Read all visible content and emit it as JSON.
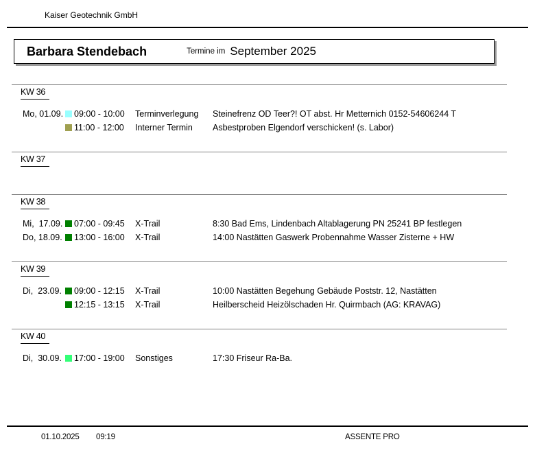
{
  "header": {
    "company": "Kaiser Geotechnik GmbH",
    "person": "Barbara Stendebach",
    "subtitle_prefix": "Termine im",
    "month": "September 2025"
  },
  "category_colors": {
    "terminverlegung": "#99FFFF",
    "interner_termin": "#A0A050",
    "x_trail": "#008000",
    "sonstiges": "#33FF77"
  },
  "weeks": [
    {
      "label": "KW 36",
      "appointments": [
        {
          "date": "Mo, 01.09.",
          "color": "#99FFFF",
          "time": "09:00 - 10:00",
          "type": "Terminverlegung",
          "description": "Steinefrenz OD Teer?! OT abst. Hr Metternich 0152-54606244 T"
        },
        {
          "date": "",
          "color": "#A0A050",
          "time": "11:00 - 12:00",
          "type": "Interner Termin",
          "description": "Asbestproben Elgendorf verschicken! (s. Labor)"
        }
      ]
    },
    {
      "label": "KW 37",
      "appointments": []
    },
    {
      "label": "KW 38",
      "appointments": [
        {
          "date": "Mi,  17.09.",
          "color": "#008000",
          "time": "07:00 - 09:45",
          "type": "X-Trail",
          "description": "8:30 Bad Ems, Lindenbach Altablagerung PN 25241 BP festlegen"
        },
        {
          "date": "Do, 18.09.",
          "color": "#008000",
          "time": "13:00 - 16:00",
          "type": "X-Trail",
          "description": "14:00 Nastätten Gaswerk Probennahme Wasser Zisterne + HW"
        }
      ]
    },
    {
      "label": "KW 39",
      "appointments": [
        {
          "date": "Di,  23.09.",
          "color": "#008000",
          "time": "09:00 - 12:15",
          "type": "X-Trail",
          "description": "10:00 Nastätten Begehung Gebäude Poststr. 12, Nastätten"
        },
        {
          "date": "",
          "color": "#008000",
          "time": "12:15 - 13:15",
          "type": "X-Trail",
          "description": "Heilberscheid Heizölschaden Hr. Quirmbach (AG: KRAVAG)"
        }
      ]
    },
    {
      "label": "KW 40",
      "appointments": [
        {
          "date": "Di,  30.09.",
          "color": "#33FF77",
          "time": "17:00 - 19:00",
          "type": "Sonstiges",
          "description": "17:30 Friseur Ra-Ba."
        }
      ]
    }
  ],
  "footer": {
    "date": "01.10.2025",
    "time": "09:19",
    "app_name": "ASSENTE PRO"
  }
}
